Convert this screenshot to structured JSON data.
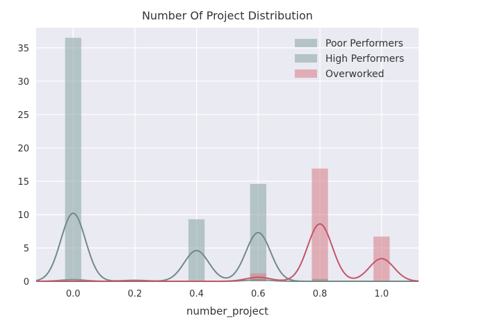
{
  "chart_data": {
    "type": "histogram-kde",
    "title": "Number Of Project Distribution",
    "xlabel": "number_project",
    "ylabel": "",
    "xlim": [
      -0.12,
      1.12
    ],
    "ylim": [
      0,
      38
    ],
    "xticks": [
      0.0,
      0.2,
      0.4,
      0.6,
      0.8,
      1.0
    ],
    "xtick_labels": [
      "0.0",
      "0.2",
      "0.4",
      "0.6",
      "0.8",
      "1.0"
    ],
    "yticks": [
      0,
      5,
      10,
      15,
      20,
      25,
      30,
      35
    ],
    "ytick_labels": [
      "0",
      "5",
      "10",
      "15",
      "20",
      "25",
      "30",
      "35"
    ],
    "grid": true,
    "legend_position": "top-right",
    "series": [
      {
        "name": "Poor Performers",
        "color": "#8fa8a8",
        "bars": [
          {
            "x": 0.0,
            "height": 36.5
          },
          {
            "x": 0.6,
            "height": 0.3
          },
          {
            "x": 0.8,
            "height": 0.3
          }
        ],
        "kde_peaks": [
          {
            "center": 0.0,
            "height": 0.25,
            "width": 0.04
          },
          {
            "center": 0.6,
            "height": 0.2,
            "width": 0.04
          }
        ]
      },
      {
        "name": "High Performers",
        "color": "#8fa8a8",
        "bars": [
          {
            "x": 0.0,
            "height": 0.1
          },
          {
            "x": 0.2,
            "height": 0.2
          },
          {
            "x": 0.4,
            "height": 9.3
          },
          {
            "x": 0.6,
            "height": 14.6
          },
          {
            "x": 0.8,
            "height": 0.4
          }
        ],
        "kde_peaks": [
          {
            "center": 0.0,
            "height": 10.2,
            "width": 0.04
          },
          {
            "center": 0.2,
            "height": 0.15,
            "width": 0.04
          },
          {
            "center": 0.4,
            "height": 4.6,
            "width": 0.04
          },
          {
            "center": 0.6,
            "height": 7.3,
            "width": 0.04
          }
        ]
      },
      {
        "name": "Overworked",
        "color": "#d9848f",
        "bars": [
          {
            "x": 0.2,
            "height": 0.1
          },
          {
            "x": 0.4,
            "height": 0.1
          },
          {
            "x": 0.6,
            "height": 1.2
          },
          {
            "x": 0.8,
            "height": 16.9
          },
          {
            "x": 1.0,
            "height": 6.7
          }
        ],
        "kde_peaks": [
          {
            "center": 0.6,
            "height": 0.6,
            "width": 0.04
          },
          {
            "center": 0.8,
            "height": 8.6,
            "width": 0.04
          },
          {
            "center": 1.0,
            "height": 3.4,
            "width": 0.04
          }
        ]
      }
    ]
  }
}
